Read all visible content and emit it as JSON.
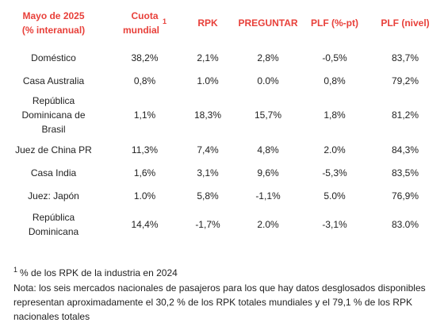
{
  "header": {
    "col0_line1": "Mayo de 2025",
    "col0_line2": "(% interanual)",
    "col1": "Cuota mundial",
    "col1_sup": "1",
    "col2": "RPK",
    "col3": "PREGUNTAR",
    "col4": "PLF (%-pt)",
    "col5": "PLF (nivel)"
  },
  "rows": [
    {
      "market": "Doméstico",
      "share": "38,2%",
      "rpk": "2,1%",
      "ask": "2,8%",
      "plf_pt": "-0,5%",
      "plf_level": "83,7%"
    },
    {
      "market": "Casa Australia",
      "share": "0,8%",
      "rpk": "1.0%",
      "ask": "0.0%",
      "plf_pt": "0,8%",
      "plf_level": "79,2%"
    },
    {
      "market": "República Dominicana de Brasil",
      "share": "1,1%",
      "rpk": "18,3%",
      "ask": "15,7%",
      "plf_pt": "1,8%",
      "plf_level": "81,2%"
    },
    {
      "market": "Juez de China PR",
      "share": "11,3%",
      "rpk": "7,4%",
      "ask": "4,8%",
      "plf_pt": "2.0%",
      "plf_level": "84,3%"
    },
    {
      "market": "Casa India",
      "share": "1,6%",
      "rpk": "3,1%",
      "ask": "9,6%",
      "plf_pt": "-5,3%",
      "plf_level": "83,5%"
    },
    {
      "market": "Juez: Japón",
      "share": "1.0%",
      "rpk": "5,8%",
      "ask": "-1,1%",
      "plf_pt": "5.0%",
      "plf_level": "76,9%"
    },
    {
      "market": "República Dominicana",
      "share": "14,4%",
      "rpk": "-1,7%",
      "ask": "2.0%",
      "plf_pt": "-3,1%",
      "plf_level": "83.0%"
    }
  ],
  "notes": {
    "footnote_sup": "1",
    "footnote_text": "% de los RPK de la industria en 2024",
    "note_text": "Nota: los seis mercados nacionales de pasajeros para los que hay datos desglosados disponibles representan aproximadamente el 30,2 % de los RPK totales mundiales y el 79,1 % de los RPK nacionales totales"
  }
}
